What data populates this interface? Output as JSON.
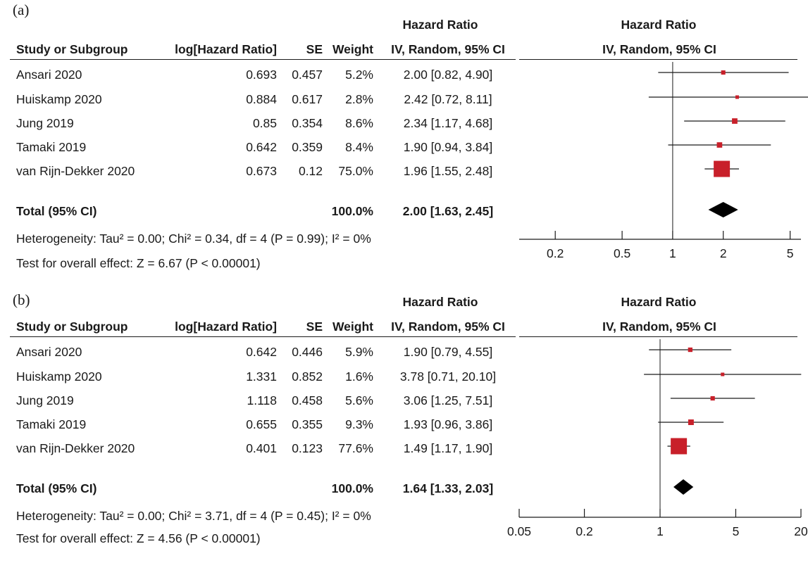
{
  "headers": {
    "study": "Study or Subgroup",
    "loghr": "log[Hazard Ratio]",
    "se": "SE",
    "weight": "Weight",
    "hr_top": "Hazard Ratio",
    "hr_method": "IV, Random, 95% CI"
  },
  "chart_data": [
    {
      "type": "forest",
      "panel_label": "(a)",
      "studies": [
        {
          "study": "Ansari 2020",
          "loghr": "0.693",
          "se": "0.457",
          "weight": "5.2%",
          "ci_text": "2.00 [0.82, 4.90]",
          "hr": 2.0,
          "lower": 0.82,
          "upper": 4.9,
          "weight_value": 5.2
        },
        {
          "study": "Huiskamp 2020",
          "loghr": "0.884",
          "se": "0.617",
          "weight": "2.8%",
          "ci_text": "2.42 [0.72, 8.11]",
          "hr": 2.42,
          "lower": 0.72,
          "upper": 8.11,
          "weight_value": 2.8
        },
        {
          "study": "Jung 2019",
          "loghr": "0.85",
          "se": "0.354",
          "weight": "8.6%",
          "ci_text": "2.34 [1.17, 4.68]",
          "hr": 2.34,
          "lower": 1.17,
          "upper": 4.68,
          "weight_value": 8.6
        },
        {
          "study": "Tamaki 2019",
          "loghr": "0.642",
          "se": "0.359",
          "weight": "8.4%",
          "ci_text": "1.90 [0.94, 3.84]",
          "hr": 1.9,
          "lower": 0.94,
          "upper": 3.84,
          "weight_value": 8.4
        },
        {
          "study": "van Rijn-Dekker 2020",
          "loghr": "0.673",
          "se": "0.12",
          "weight": "75.0%",
          "ci_text": "1.96 [1.55, 2.48]",
          "hr": 1.96,
          "lower": 1.55,
          "upper": 2.48,
          "weight_value": 75.0
        }
      ],
      "total": {
        "label": "Total (95% CI)",
        "weight": "100.0%",
        "ci_text": "2.00 [1.63, 2.45]",
        "hr": 2.0,
        "lower": 1.63,
        "upper": 2.45
      },
      "heterogeneity": "Heterogeneity: Tau² = 0.00; Chi² = 0.34, df = 4 (P = 0.99); I² = 0%",
      "overall_effect": "Test for overall effect: Z = 6.67 (P < 0.00001)",
      "axis": {
        "scale": "log",
        "ticks": [
          0.2,
          0.5,
          1,
          2,
          5
        ],
        "tick_labels": [
          "0.2",
          "0.5",
          "1",
          "2",
          "5"
        ],
        "xlim": [
          0.122,
          5.8
        ],
        "reference_line": 1
      }
    },
    {
      "type": "forest",
      "panel_label": "(b)",
      "studies": [
        {
          "study": "Ansari 2020",
          "loghr": "0.642",
          "se": "0.446",
          "weight": "5.9%",
          "ci_text": "1.90 [0.79, 4.55]",
          "hr": 1.9,
          "lower": 0.79,
          "upper": 4.55,
          "weight_value": 5.9
        },
        {
          "study": "Huiskamp 2020",
          "loghr": "1.331",
          "se": "0.852",
          "weight": "1.6%",
          "ci_text": "3.78 [0.71, 20.10]",
          "hr": 3.78,
          "lower": 0.71,
          "upper": 20.1,
          "weight_value": 1.6
        },
        {
          "study": "Jung 2019",
          "loghr": "1.118",
          "se": "0.458",
          "weight": "5.6%",
          "ci_text": "3.06 [1.25, 7.51]",
          "hr": 3.06,
          "lower": 1.25,
          "upper": 7.51,
          "weight_value": 5.6
        },
        {
          "study": "Tamaki 2019",
          "loghr": "0.655",
          "se": "0.355",
          "weight": "9.3%",
          "ci_text": "1.93 [0.96, 3.86]",
          "hr": 1.93,
          "lower": 0.96,
          "upper": 3.86,
          "weight_value": 9.3
        },
        {
          "study": "van Rijn-Dekker 2020",
          "loghr": "0.401",
          "se": "0.123",
          "weight": "77.6%",
          "ci_text": "1.49 [1.17, 1.90]",
          "hr": 1.49,
          "lower": 1.17,
          "upper": 1.9,
          "weight_value": 77.6
        }
      ],
      "total": {
        "label": "Total (95% CI)",
        "weight": "100.0%",
        "ci_text": "1.64 [1.33, 2.03]",
        "hr": 1.64,
        "lower": 1.33,
        "upper": 2.03
      },
      "heterogeneity": "Heterogeneity: Tau² = 0.00; Chi² = 3.71, df = 4 (P = 0.45); I² = 0%",
      "overall_effect": "Test for overall effect: Z = 4.56 (P < 0.00001)",
      "axis": {
        "scale": "log",
        "ticks": [
          0.05,
          0.2,
          1,
          5,
          20
        ],
        "tick_labels": [
          "0.05",
          "0.2",
          "1",
          "5",
          "20"
        ],
        "xlim": [
          0.05,
          20
        ],
        "reference_line": 1
      }
    }
  ],
  "colors": {
    "marker": "#c8202a",
    "diamond": "#000000",
    "line": "#1a1a1a"
  }
}
